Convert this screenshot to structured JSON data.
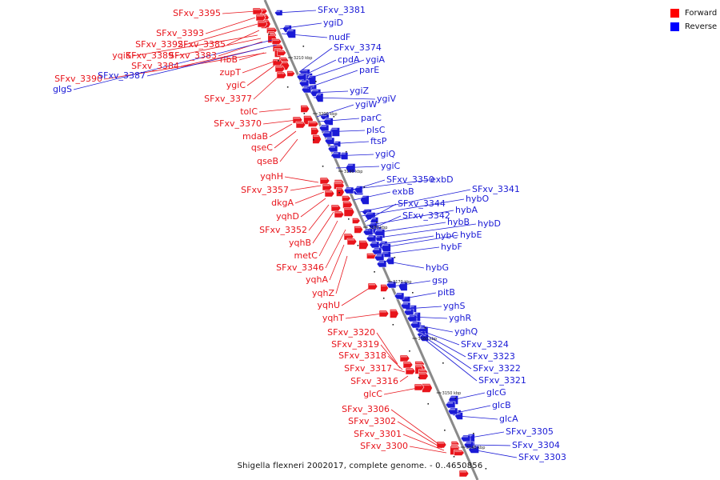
{
  "legend": {
    "items": [
      {
        "label": "Forward",
        "color": "#ff0000"
      },
      {
        "label": "Reverse",
        "color": "#0000ff"
      }
    ]
  },
  "caption": "Shigella flexneri 2002017, complete genome. - 0..4650856",
  "colors": {
    "forward": "#e8141b",
    "reverse": "#1a1ad6",
    "backbone": "#888888"
  },
  "ticks": [
    "3210 kbp",
    "3200 kbp",
    "3190 kbp",
    "3180 kbp",
    "3170 kbp",
    "3160 kbp",
    "3150 kbp",
    "3140 kbp"
  ],
  "forward_genes": [
    "SFxv_3395",
    "SFxv_3393",
    "SFxv_3392",
    "SFxv_3385",
    "yqiK",
    "SFxv_3389",
    "SFxv_3383",
    "SFxv_3384",
    "SFxv_3390",
    "ribB",
    "zupT",
    "ygiC",
    "SFxv_3377",
    "tolC",
    "SFxv_3370",
    "mdaB",
    "qseC",
    "qseB",
    "yqhH",
    "SFxv_3357",
    "dkgA",
    "yqhD",
    "SFxv_3352",
    "yqhB",
    "metC",
    "SFxv_3346",
    "yqhA",
    "yqhZ",
    "yqhU",
    "yqhT",
    "SFxv_3320",
    "SFxv_3319",
    "SFxv_3318",
    "SFxv_3317",
    "SFxv_3316",
    "glcC",
    "SFxv_3306",
    "SFxv_3302",
    "SFxv_3301",
    "SFxv_3300"
  ],
  "reverse_genes": [
    "SFxv_3381",
    "ygiD",
    "nudF",
    "SFxv_3374",
    "cpdA",
    "ygiA",
    "parE",
    "ygiZ",
    "ygiV",
    "ygiW",
    "parC",
    "plsC",
    "ftsP",
    "ygiQ",
    "ygiC",
    "SFxv_3350",
    "exbD",
    "exbB",
    "SFxv_3341",
    "hybO",
    "SFxv_3344",
    "hybA",
    "SFxv_3342",
    "hybB",
    "hybD",
    "hybC",
    "hybE",
    "hybF",
    "hybG",
    "gsp",
    "pitB",
    "yghS",
    "yghR",
    "yghQ",
    "SFxv_3324",
    "SFxv_3323",
    "SFxv_3322",
    "SFxv_3321",
    "glcG",
    "glcB",
    "glcA",
    "SFxv_3305",
    "SFxv_3304",
    "SFxv_3303",
    "glgS",
    "SFxv_3387"
  ]
}
